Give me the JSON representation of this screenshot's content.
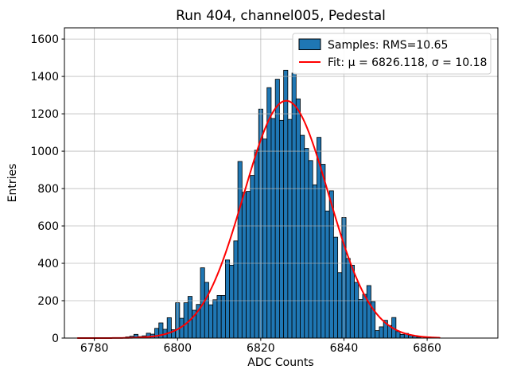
{
  "chart_data": {
    "type": "bar",
    "subtype": "histogram-with-gaussian-fit",
    "title": "Run 404, channel005, Pedestal",
    "xlabel": "ADC Counts",
    "ylabel": "Entries",
    "xlim": [
      6772.8,
      6877.0
    ],
    "ylim": [
      0,
      1660
    ],
    "x_ticks": [
      6780,
      6800,
      6820,
      6840,
      6860
    ],
    "y_ticks": [
      0,
      200,
      400,
      600,
      800,
      1000,
      1200,
      1400,
      1600
    ],
    "grid": true,
    "legend": {
      "position": "upper right",
      "entries": [
        {
          "label": "Samples: RMS=10.65",
          "marker": "patch",
          "color": "#1f77b4"
        },
        {
          "label": "Fit: μ = 6826.118, σ = 10.18",
          "marker": "line",
          "color": "#ff0000"
        }
      ]
    },
    "histogram": {
      "bin_width": 1,
      "bin_centers": [
        6788,
        6789,
        6790,
        6791,
        6792,
        6793,
        6794,
        6795,
        6796,
        6797,
        6798,
        6799,
        6800,
        6801,
        6802,
        6803,
        6804,
        6805,
        6806,
        6807,
        6808,
        6809,
        6810,
        6811,
        6812,
        6813,
        6814,
        6815,
        6816,
        6817,
        6818,
        6819,
        6820,
        6821,
        6822,
        6823,
        6824,
        6825,
        6826,
        6827,
        6828,
        6829,
        6830,
        6831,
        6832,
        6833,
        6834,
        6835,
        6836,
        6837,
        6838,
        6839,
        6840,
        6841,
        6842,
        6843,
        6844,
        6845,
        6846,
        6847,
        6848,
        6849,
        6850,
        6851,
        6852,
        6853,
        6854,
        6855,
        6856,
        6857,
        6858
      ],
      "counts": [
        6,
        10,
        20,
        8,
        12,
        26,
        21,
        52,
        81,
        47,
        109,
        45,
        189,
        106,
        189,
        223,
        149,
        180,
        376,
        298,
        178,
        205,
        228,
        228,
        418,
        390,
        520,
        945,
        780,
        785,
        870,
        1005,
        1225,
        1065,
        1340,
        1175,
        1385,
        1165,
        1433,
        1170,
        1418,
        1280,
        1085,
        1015,
        950,
        820,
        1074,
        930,
        680,
        788,
        540,
        350,
        645,
        426,
        390,
        298,
        206,
        234,
        281,
        195,
        40,
        60,
        95,
        67,
        110,
        35,
        20,
        25,
        15,
        10,
        5
      ]
    },
    "fit": {
      "mu": 6826.118,
      "sigma": 10.18,
      "amplitude": 1270,
      "x_start": 6776,
      "x_end": 6863
    },
    "colors": {
      "bar_fill": "#1f77b4",
      "bar_edge": "#000000",
      "fit_line": "#ff0000",
      "grid": "#b0b0b0",
      "spine": "#000000",
      "legend_border": "#cccccc",
      "background": "#ffffff"
    }
  }
}
